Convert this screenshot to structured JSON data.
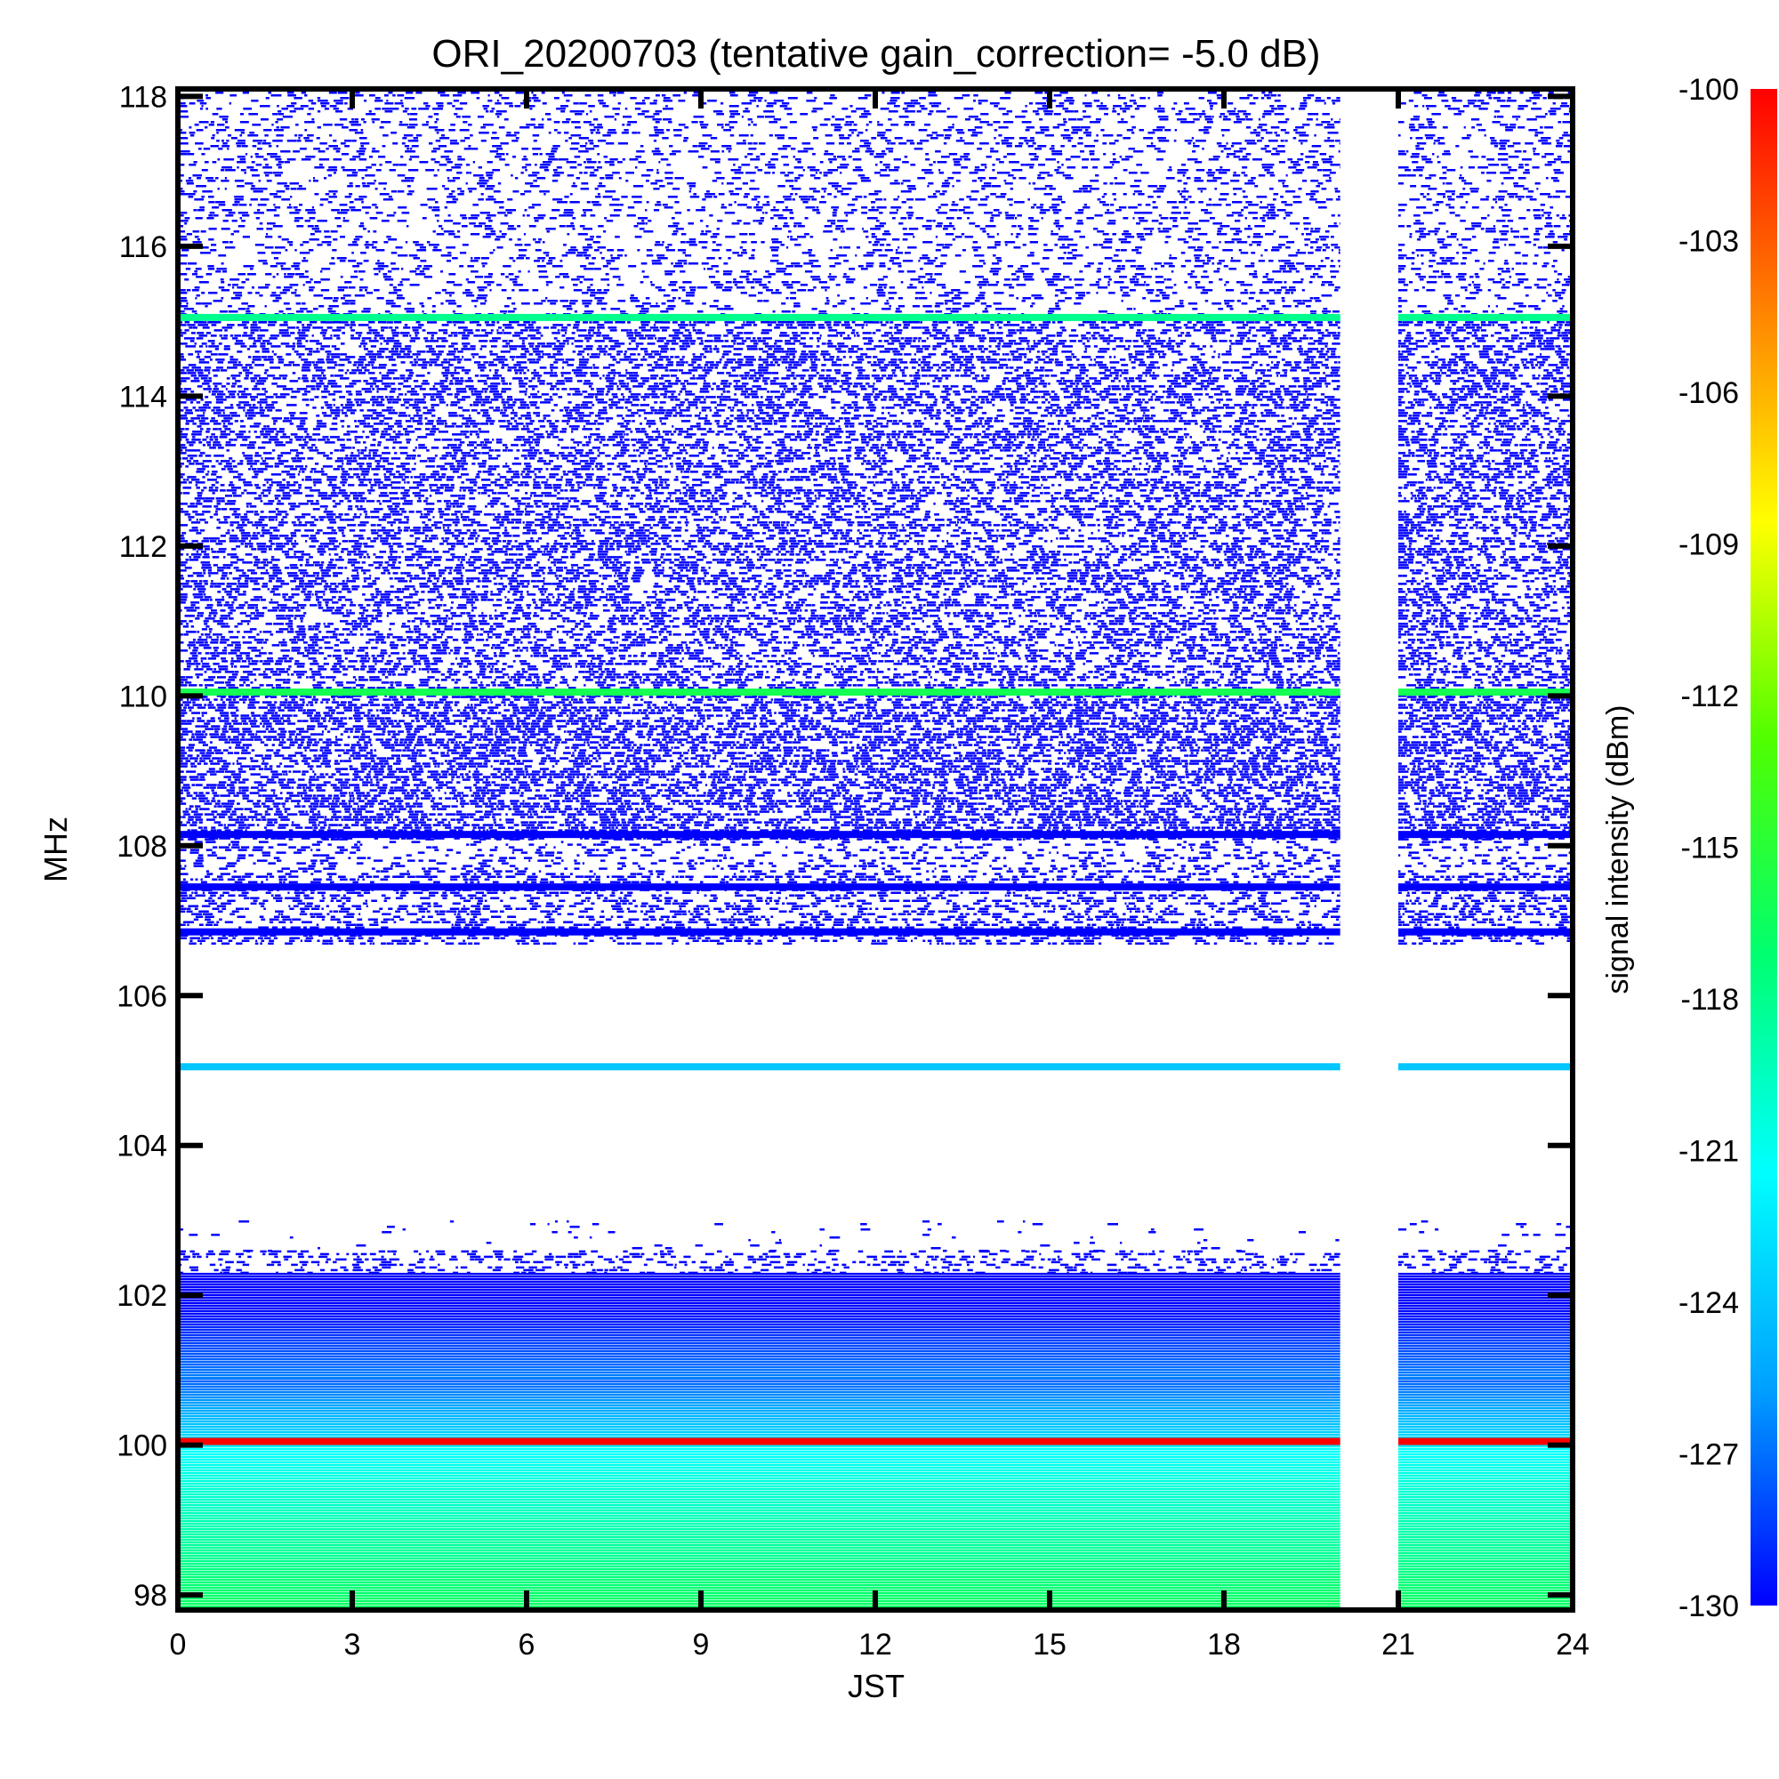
{
  "chart_data": {
    "type": "heatmap",
    "title": "ORI_20200703 (tentative gain_correction= -5.0 dB)",
    "xlabel": "JST",
    "ylabel": "MHz",
    "colorbar_label": "signal intensity (dBm)",
    "xlim": [
      0,
      24
    ],
    "ylim": [
      97.8,
      118.1
    ],
    "x_ticks": [
      0,
      3,
      6,
      9,
      12,
      15,
      18,
      21,
      24
    ],
    "y_ticks": [
      98,
      100,
      102,
      104,
      106,
      108,
      110,
      112,
      114,
      116,
      118
    ],
    "colorbar_range": [
      -130,
      -100
    ],
    "colorbar_ticks": [
      -100,
      -103,
      -106,
      -109,
      -112,
      -115,
      -118,
      -121,
      -124,
      -127,
      -130
    ],
    "colormap": [
      "#0000ff",
      "#00a0ff",
      "#00ffff",
      "#00ff70",
      "#50ff00",
      "#ffff00",
      "#ff8000",
      "#ff0000"
    ],
    "data_gap_hours": [
      20.0,
      21.0
    ],
    "bands": [
      {
        "mhz_from": 97.8,
        "mhz_to": 100.0,
        "intensity_dbm": -119,
        "coverage": 1.0
      },
      {
        "mhz_from": 100.0,
        "mhz_to": 100.9,
        "intensity_dbm": -125,
        "coverage": 1.0
      },
      {
        "mhz_from": 100.9,
        "mhz_to": 102.3,
        "intensity_dbm": -129,
        "coverage": 0.95
      },
      {
        "mhz_from": 102.3,
        "mhz_to": 102.6,
        "intensity_dbm": -130,
        "coverage": 0.45
      },
      {
        "mhz_from": 102.6,
        "mhz_to": 103.0,
        "intensity_dbm": -130,
        "coverage": 0.06
      },
      {
        "mhz_from": 106.7,
        "mhz_to": 107.6,
        "intensity_dbm": -130,
        "coverage": 0.55
      },
      {
        "mhz_from": 107.6,
        "mhz_to": 108.1,
        "intensity_dbm": -130,
        "coverage": 0.4
      },
      {
        "mhz_from": 108.1,
        "mhz_to": 110.0,
        "intensity_dbm": -130,
        "coverage": 0.7
      },
      {
        "mhz_from": 110.0,
        "mhz_to": 115.0,
        "intensity_dbm": -130,
        "coverage": 0.62
      },
      {
        "mhz_from": 115.0,
        "mhz_to": 118.1,
        "intensity_dbm": -130,
        "coverage": 0.38
      }
    ],
    "carrier_lines": [
      {
        "mhz": 100.05,
        "intensity_dbm": -100
      },
      {
        "mhz": 105.05,
        "intensity_dbm": -124
      },
      {
        "mhz": 110.05,
        "intensity_dbm": -116
      },
      {
        "mhz": 115.05,
        "intensity_dbm": -118
      },
      {
        "mhz": 106.85,
        "intensity_dbm": -130
      },
      {
        "mhz": 107.45,
        "intensity_dbm": -130
      },
      {
        "mhz": 108.15,
        "intensity_dbm": -130
      }
    ]
  }
}
